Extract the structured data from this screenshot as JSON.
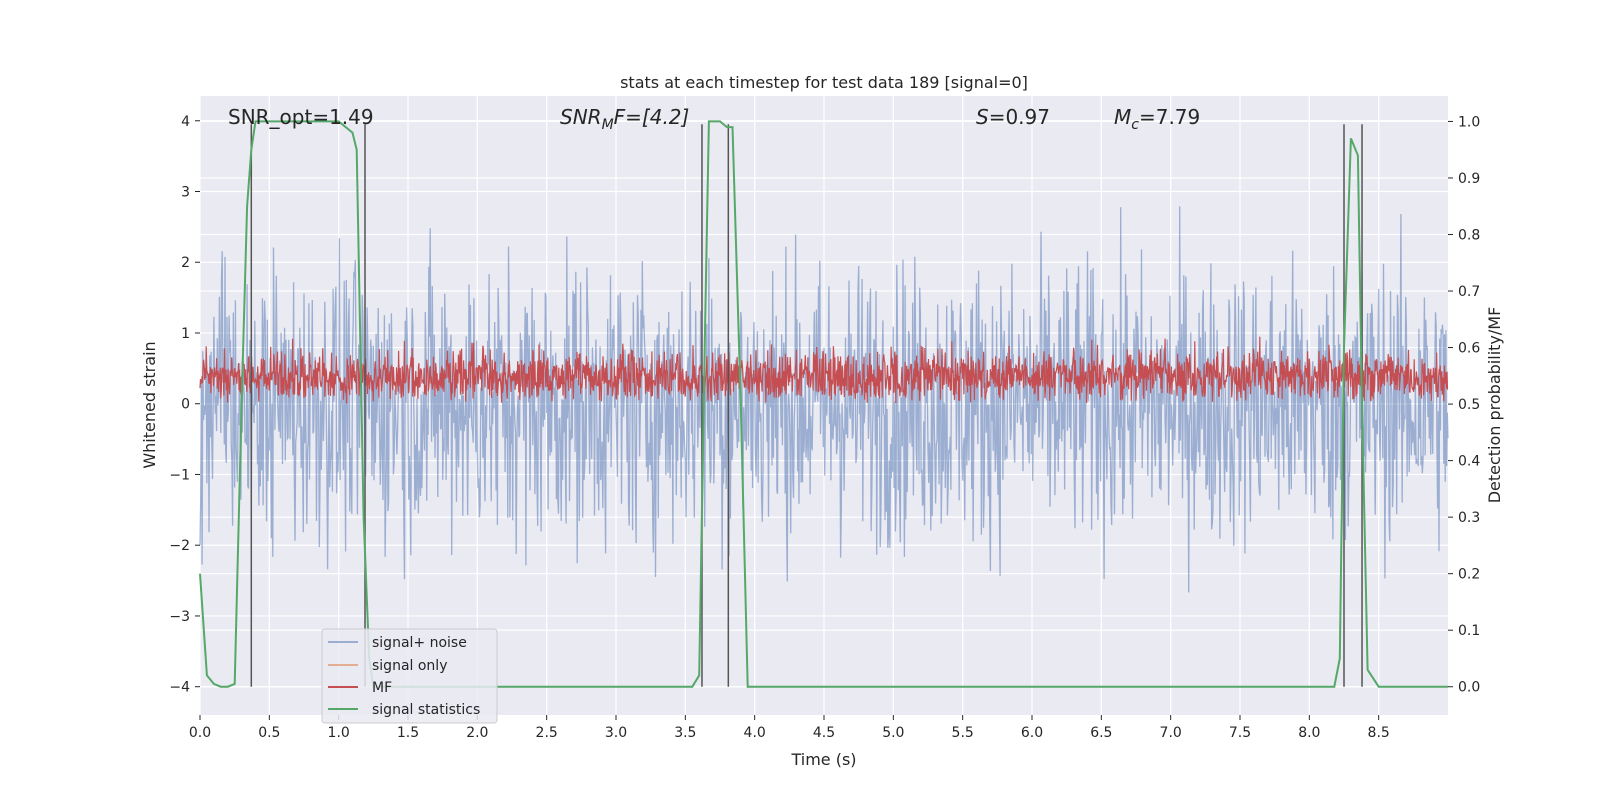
{
  "chart_data": {
    "type": "line",
    "title": "stats at each timestep for test data 189 [signal=0]",
    "xlabel": "Time (s)",
    "ylabel": "Whitened strain",
    "ylabel_right": "Detection probability/MF",
    "xlim": [
      0.0,
      9.0
    ],
    "ylim": [
      -4.4,
      4.35
    ],
    "ylim_right": [
      -0.05,
      1.045
    ],
    "x_ticks": [
      "0.0",
      "0.5",
      "1.0",
      "1.5",
      "2.0",
      "2.5",
      "3.0",
      "3.5",
      "4.0",
      "4.5",
      "5.0",
      "5.5",
      "6.0",
      "6.5",
      "7.0",
      "7.5",
      "8.0",
      "8.5"
    ],
    "y_ticks": [
      "−4",
      "−3",
      "−2",
      "−1",
      "0",
      "1",
      "2",
      "3",
      "4"
    ],
    "y_ticks_right": [
      "0.0",
      "0.1",
      "0.2",
      "0.3",
      "0.4",
      "0.5",
      "0.6",
      "0.7",
      "0.8",
      "0.9",
      "1.0"
    ],
    "grid": true,
    "legend_position": "lower-left",
    "annotations": [
      {
        "text": "SNR_opt=1.49",
        "x": 0.2,
        "y": 4.0
      },
      {
        "text": "SNRMF=[4.2]",
        "x": 2.6,
        "y": 4.0,
        "parts": [
          "SNR",
          "M",
          "F=[4.2]"
        ]
      },
      {
        "text": "S=0.97",
        "x": 5.6,
        "y": 4.0,
        "parts": [
          "S",
          "=0.97"
        ]
      },
      {
        "text": "Mc=7.79",
        "x": 6.6,
        "y": 4.0,
        "parts": [
          "M",
          "c",
          "=7.79"
        ]
      }
    ],
    "series": [
      {
        "name": "signal+ noise",
        "color": "#4c72b0",
        "alpha": 0.5,
        "kind": "noise",
        "envelope": [
          -3.9,
          3.95
        ]
      },
      {
        "name": "signal only",
        "color": "#dd8452",
        "values": []
      },
      {
        "name": "MF",
        "color": "#c44e52",
        "kind": "noise",
        "range": [
          0.0,
          1.0
        ]
      },
      {
        "name": "signal statistics",
        "color": "#55a868",
        "axis": "right",
        "x": [
          0.0,
          0.05,
          0.1,
          0.15,
          0.2,
          0.25,
          0.3,
          0.34,
          0.37,
          0.4,
          0.45,
          0.5,
          0.55,
          0.6,
          0.7,
          0.8,
          0.9,
          1.0,
          1.1,
          1.13,
          1.18,
          1.22,
          1.25,
          1.3,
          1.35,
          1.5,
          2.0,
          2.5,
          3.0,
          3.5,
          3.55,
          3.6,
          3.64,
          3.67,
          3.7,
          3.75,
          3.8,
          3.84,
          3.9,
          3.95,
          4.0,
          4.5,
          5.0,
          5.5,
          5.7,
          5.8,
          6.0,
          6.5,
          7.0,
          7.5,
          8.0,
          8.18,
          8.22,
          8.25,
          8.3,
          8.35,
          8.38,
          8.42,
          8.5,
          9.0
        ],
        "y": [
          0.2,
          0.02,
          0.005,
          0.0,
          0.0,
          0.005,
          0.5,
          0.85,
          0.95,
          1.0,
          1.0,
          1.0,
          1.0,
          1.0,
          1.0,
          1.0,
          1.0,
          1.0,
          0.98,
          0.95,
          0.3,
          0.05,
          0.0,
          0.0,
          0.0,
          0.0,
          0.0,
          0.0,
          0.0,
          0.0,
          0.0,
          0.02,
          0.6,
          1.0,
          1.0,
          1.0,
          0.99,
          0.99,
          0.5,
          0.0,
          0.0,
          0.0,
          0.0,
          0.0,
          0.0,
          0.0,
          0.0,
          0.0,
          0.0,
          0.0,
          0.0,
          0.0,
          0.05,
          0.6,
          0.97,
          0.94,
          0.5,
          0.03,
          0.0,
          0.0
        ]
      },
      {
        "name": "vertical markers",
        "color": "#555555",
        "x": [
          0.37,
          1.19,
          3.62,
          3.81,
          8.25,
          8.38
        ]
      }
    ]
  }
}
